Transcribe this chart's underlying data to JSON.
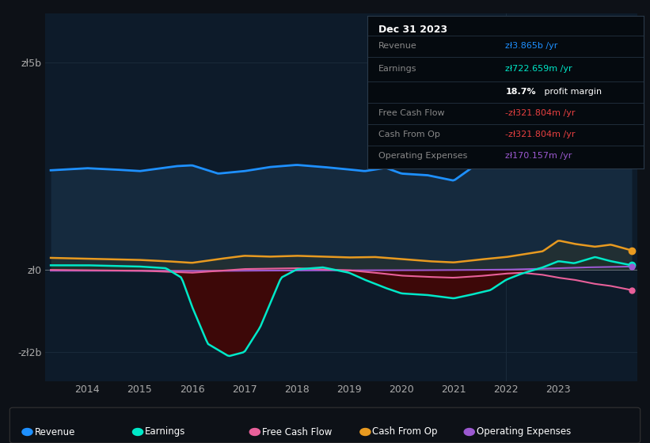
{
  "bg_color": "#0d1117",
  "plot_bg_color": "#0d1b2a",
  "title_box_bg": "#0a0a0a",
  "yticks_labels": [
    "zł5b",
    "zł0",
    "-zł2b"
  ],
  "ytick_values": [
    5000,
    0,
    -2000
  ],
  "ylim": [
    -2700,
    6200
  ],
  "xlim": [
    2013.2,
    2024.5
  ],
  "xticks": [
    2014,
    2015,
    2016,
    2017,
    2018,
    2019,
    2020,
    2021,
    2022,
    2023
  ],
  "legend": [
    {
      "label": "Revenue",
      "color": "#1e90ff"
    },
    {
      "label": "Earnings",
      "color": "#00e8c8"
    },
    {
      "label": "Free Cash Flow",
      "color": "#e8609a"
    },
    {
      "label": "Cash From Op",
      "color": "#e89a20"
    },
    {
      "label": "Operating Expenses",
      "color": "#9b59d0"
    }
  ],
  "revenue_color": "#1e90ff",
  "revenue_fill_color": "#1a3a5c",
  "earnings_color": "#00e8c8",
  "earnings_fill_neg_color": "#5a0a0a",
  "earnings_fill_pos_color": "#1a3a3a",
  "fcf_color": "#e8609a",
  "cashfromop_color": "#e89a20",
  "opex_color": "#9b59d0",
  "zero_line_color": "#cccccc",
  "grid_color": "#1a2a3a",
  "tick_color": "#aaaaaa",
  "title_date": "Dec 31 2023",
  "info_rows": [
    {
      "label": "Revenue",
      "value": "zł3.865b /yr",
      "value_color": "#1e90ff"
    },
    {
      "label": "Earnings",
      "value": "zł722.659m /yr",
      "value_color": "#00e8c8"
    },
    {
      "label": "",
      "value_bold": "18.7%",
      "value_rest": " profit margin",
      "value_color": "#ffffff"
    },
    {
      "label": "Free Cash Flow",
      "value": "-zł321.804m /yr",
      "value_color": "#e84040"
    },
    {
      "label": "Cash From Op",
      "value": "-zł321.804m /yr",
      "value_color": "#e84040"
    },
    {
      "label": "Operating Expenses",
      "value": "zł170.157m /yr",
      "value_color": "#9b59d0"
    }
  ]
}
